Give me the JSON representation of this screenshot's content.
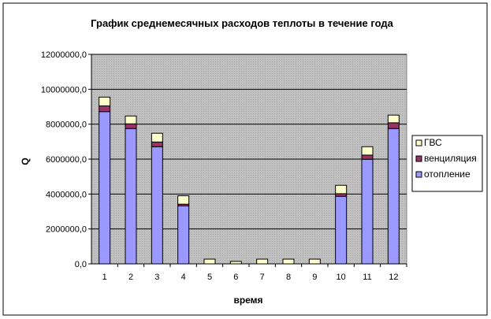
{
  "chart_data": {
    "type": "bar",
    "stacked": true,
    "title": "График среднемесячных расходов теплоты в течение года",
    "xlabel": "время",
    "ylabel": "Q",
    "ylim": [
      0,
      12000000
    ],
    "yticks": [
      "0,0",
      "2000000,0",
      "4000000,0",
      "6000000,0",
      "8000000,0",
      "10000000,0",
      "12000000,0"
    ],
    "categories": [
      "1",
      "2",
      "3",
      "4",
      "5",
      "6",
      "7",
      "8",
      "9",
      "10",
      "11",
      "12"
    ],
    "grid": true,
    "legend_position": "right",
    "series": [
      {
        "name": "отопление",
        "color": "#9999FF",
        "values": [
          8720000,
          7750000,
          6710000,
          3320000,
          0,
          0,
          0,
          0,
          0,
          3870000,
          5990000,
          7750000
        ]
      },
      {
        "name": "венциляция",
        "color": "#993366",
        "values": [
          330000,
          270000,
          270000,
          100000,
          0,
          0,
          0,
          0,
          0,
          150000,
          240000,
          330000
        ]
      },
      {
        "name": "ГВС",
        "color": "#FFFFCC",
        "values": [
          500000,
          450000,
          500000,
          480000,
          270000,
          140000,
          270000,
          270000,
          270000,
          480000,
          480000,
          440000
        ]
      }
    ],
    "plot_background": "#C0C0C0"
  }
}
